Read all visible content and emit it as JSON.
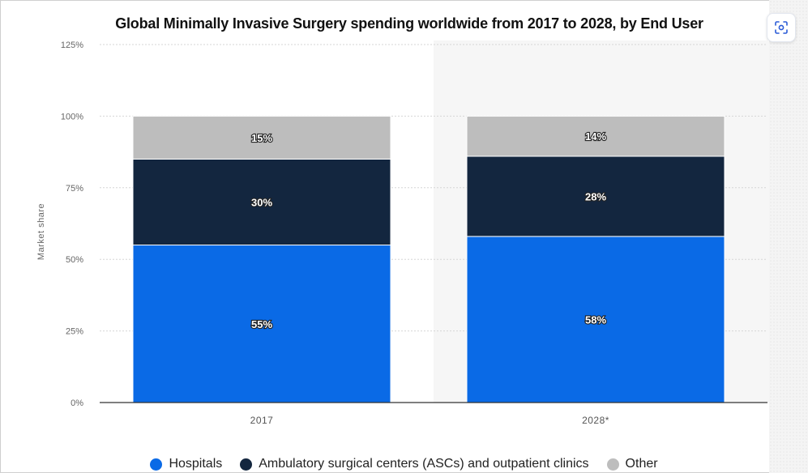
{
  "chart_data": {
    "type": "bar",
    "stacked": true,
    "title": "Global Minimally Invasive Surgery spending worldwide from 2017 to 2028, by End User",
    "xlabel": "",
    "ylabel": "Market share",
    "ylim": [
      0,
      125
    ],
    "yticks": [
      "0%",
      "25%",
      "50%",
      "75%",
      "100%",
      "125%"
    ],
    "categories": [
      "2017",
      "2028*"
    ],
    "series": [
      {
        "name": "Hospitals",
        "values": [
          55,
          58
        ],
        "labels": [
          "55%",
          "58%"
        ],
        "color": "#0a6ae6"
      },
      {
        "name": "Ambulatory surgical centers (ASCs) and outpatient clinics",
        "values": [
          30,
          28
        ],
        "labels": [
          "30%",
          "28%"
        ],
        "color": "#13263f"
      },
      {
        "name": "Other",
        "values": [
          15,
          14
        ],
        "labels": [
          "15%",
          "14%"
        ],
        "color": "#bdbdbd"
      }
    ],
    "grid": true,
    "legend_position": "bottom",
    "highlighted_category": "2028*"
  },
  "icons": {
    "screenshot": "screenshot-icon"
  }
}
